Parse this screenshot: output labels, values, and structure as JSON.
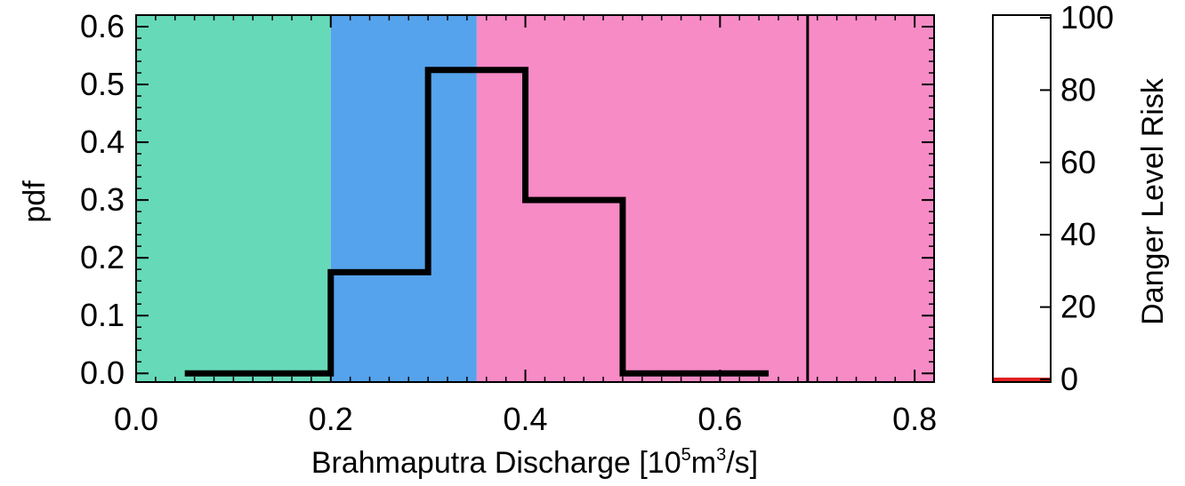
{
  "chart_data": [
    {
      "type": "step",
      "title": "",
      "xlabel": "Brahmaputra Discharge [10",
      "xlabel_sup1": "5",
      "xlabel_mid": "m",
      "xlabel_sup2": "3",
      "xlabel_end": "/s]",
      "ylabel": "pdf",
      "xlim": [
        0.0,
        0.82
      ],
      "ylim": [
        -0.015,
        0.62
      ],
      "xticks": [
        0.0,
        0.2,
        0.4,
        0.6,
        0.8
      ],
      "xtick_labels": [
        "0.0",
        "0.2",
        "0.4",
        "0.6",
        "0.8"
      ],
      "yticks": [
        0.0,
        0.1,
        0.2,
        0.3,
        0.4,
        0.5,
        0.6
      ],
      "ytick_labels": [
        "0.0",
        "0.1",
        "0.2",
        "0.3",
        "0.4",
        "0.5",
        "0.6"
      ],
      "background_bands": [
        {
          "from": 0.0,
          "to": 0.2,
          "color": "#66d9b8"
        },
        {
          "from": 0.2,
          "to": 0.35,
          "color": "#55a3ec"
        },
        {
          "from": 0.35,
          "to": 0.82,
          "color": "#f78bc6"
        }
      ],
      "reference_line_x": 0.69,
      "bins": [
        {
          "x0": 0.05,
          "x1": 0.2,
          "value": 0.0
        },
        {
          "x0": 0.2,
          "x1": 0.3,
          "value": 0.175
        },
        {
          "x0": 0.3,
          "x1": 0.4,
          "value": 0.525
        },
        {
          "x0": 0.4,
          "x1": 0.5,
          "value": 0.3
        },
        {
          "x0": 0.5,
          "x1": 0.65,
          "value": 0.0
        }
      ]
    },
    {
      "type": "bar",
      "ylabel": "Danger Level Risk",
      "ylim": [
        0,
        100
      ],
      "yticks": [
        0,
        20,
        40,
        60,
        80,
        100
      ],
      "ytick_labels": [
        "0",
        "20",
        "40",
        "60",
        "80",
        "100"
      ],
      "values": [
        0
      ],
      "bar_color": "#e02020"
    }
  ]
}
